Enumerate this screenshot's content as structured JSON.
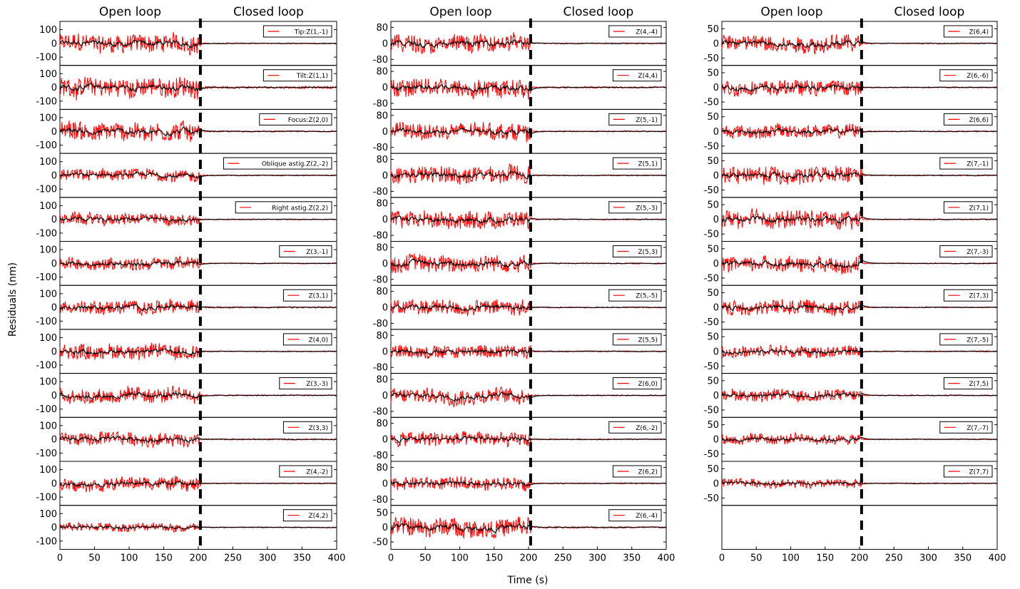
{
  "chart_data": {
    "type": "line",
    "xlabel": "Time (s)",
    "ylabel": "Residuals (nm)",
    "headers": {
      "open": "Open loop",
      "closed": "Closed loop"
    },
    "xlim": [
      0,
      400
    ],
    "xticks": [
      0,
      50,
      100,
      150,
      200,
      250,
      300,
      350,
      400
    ],
    "loop_switch_time": 203,
    "series_colors": {
      "raw": "#ff0000",
      "smoothed": "#000000"
    },
    "series_descriptions": {
      "raw": "Raw residuals (red)",
      "smoothed": "Filtered residuals (black)"
    },
    "columns": [
      {
        "yticks": [
          100,
          0,
          -100
        ],
        "ylim": [
          -160,
          160
        ],
        "panels": [
          {
            "label": "Tip:Z(1,-1)",
            "open_amp": 115,
            "closed_amp": 4
          },
          {
            "label": "Tilt:Z(1,1)",
            "open_amp": 125,
            "closed_amp": 8
          },
          {
            "label": "Focus:Z(2,0)",
            "open_amp": 120,
            "closed_amp": 5
          },
          {
            "label": "Oblique astig.Z(2,-2)",
            "open_amp": 75,
            "closed_amp": 4
          },
          {
            "label": "Right astig.Z(2,2)",
            "open_amp": 75,
            "closed_amp": 4
          },
          {
            "label": "Z(3,-1)",
            "open_amp": 80,
            "closed_amp": 4
          },
          {
            "label": "Z(3,1)",
            "open_amp": 85,
            "closed_amp": 6
          },
          {
            "label": "Z(4,0)",
            "open_amp": 95,
            "closed_amp": 4
          },
          {
            "label": "Z(3,-3)",
            "open_amp": 95,
            "closed_amp": 5
          },
          {
            "label": "Z(3,3)",
            "open_amp": 85,
            "closed_amp": 5
          },
          {
            "label": "Z(4,-2)",
            "open_amp": 80,
            "closed_amp": 4
          },
          {
            "label": "Z(4,2)",
            "open_amp": 55,
            "closed_amp": 4
          }
        ]
      },
      {
        "yticks": [
          80,
          0,
          -80
        ],
        "ylim": [
          -110,
          110
        ],
        "last_panel_yticks": [
          50,
          0,
          -50
        ],
        "last_panel_ylim": [
          -75,
          75
        ],
        "panels": [
          {
            "label": "Z(4,-4)",
            "open_amp": 75,
            "closed_amp": 3
          },
          {
            "label": "Z(4,4)",
            "open_amp": 80,
            "closed_amp": 4
          },
          {
            "label": "Z(5,-1)",
            "open_amp": 70,
            "closed_amp": 3
          },
          {
            "label": "Z(5,1)",
            "open_amp": 75,
            "closed_amp": 3
          },
          {
            "label": "Z(5,-3)",
            "open_amp": 75,
            "closed_amp": 3
          },
          {
            "label": "Z(5,3)",
            "open_amp": 75,
            "closed_amp": 3
          },
          {
            "label": "Z(5,-5)",
            "open_amp": 65,
            "closed_amp": 3
          },
          {
            "label": "Z(5,5)",
            "open_amp": 60,
            "closed_amp": 3
          },
          {
            "label": "Z(6,0)",
            "open_amp": 70,
            "closed_amp": 3
          },
          {
            "label": "Z(6,-2)",
            "open_amp": 65,
            "closed_amp": 3
          },
          {
            "label": "Z(6,2)",
            "open_amp": 55,
            "closed_amp": 3
          },
          {
            "label": "Z(6,-4)",
            "open_amp": 55,
            "closed_amp": 3
          }
        ]
      },
      {
        "yticks": [
          50,
          0,
          -50
        ],
        "ylim": [
          -75,
          75
        ],
        "panels": [
          {
            "label": "Z(6,4)",
            "open_amp": 50,
            "closed_amp": 2
          },
          {
            "label": "Z(6,-6)",
            "open_amp": 45,
            "closed_amp": 2
          },
          {
            "label": "Z(6,6)",
            "open_amp": 40,
            "closed_amp": 2
          },
          {
            "label": "Z(7,-1)",
            "open_amp": 50,
            "closed_amp": 2
          },
          {
            "label": "Z(7,1)",
            "open_amp": 55,
            "closed_amp": 2
          },
          {
            "label": "Z(7,-3)",
            "open_amp": 45,
            "closed_amp": 2
          },
          {
            "label": "Z(7,3)",
            "open_amp": 45,
            "closed_amp": 2
          },
          {
            "label": "Z(7,-5)",
            "open_amp": 35,
            "closed_amp": 2
          },
          {
            "label": "Z(7,5)",
            "open_amp": 35,
            "closed_amp": 2
          },
          {
            "label": "Z(7,-7)",
            "open_amp": 30,
            "closed_amp": 2
          },
          {
            "label": "Z(7,7)",
            "open_amp": 25,
            "closed_amp": 2
          }
        ]
      }
    ]
  }
}
